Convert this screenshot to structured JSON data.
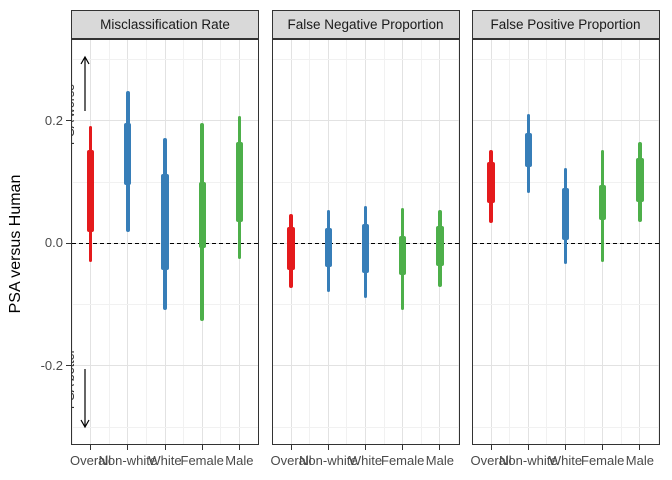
{
  "chart_data": {
    "type": "interval",
    "title": "",
    "ylabel": "PSA versus Human",
    "xlabel": "",
    "categories": [
      "Overall",
      "Non-white",
      "White",
      "Female",
      "Male"
    ],
    "group_colors": {
      "Overall": "#E41A1C",
      "Non-white": "#377EB8",
      "White": "#377EB8",
      "Female": "#4DAF4A",
      "Male": "#4DAF4A"
    },
    "y_axis": {
      "ticks": [
        {
          "label": "0.2",
          "value": 0.2
        },
        {
          "label": "0.0",
          "value": 0.0
        },
        {
          "label": "-0.2",
          "value": -0.2
        }
      ],
      "range": [
        -0.33,
        0.33
      ],
      "zero_line": "dashed",
      "minor_gridlines": [
        -0.3,
        -0.1,
        0.1,
        0.3
      ],
      "major_gridlines": [
        -0.2,
        0.0,
        0.2
      ]
    },
    "annotations": [
      {
        "text": "PSA worse",
        "arrow": "up",
        "position": "top-left of first panel"
      },
      {
        "text": "PSA better",
        "arrow": "down",
        "position": "bottom-left of first panel"
      }
    ],
    "facets": [
      {
        "title": "Misclassification Rate",
        "bars": [
          {
            "category": "Overall",
            "outer": [
              -0.03,
              0.191
            ],
            "inner": [
              0.019,
              0.152
            ]
          },
          {
            "category": "Non-white",
            "outer": [
              0.019,
              0.248
            ],
            "inner": [
              0.095,
              0.196
            ]
          },
          {
            "category": "White",
            "outer": [
              -0.109,
              0.171
            ],
            "inner": [
              -0.044,
              0.113
            ]
          },
          {
            "category": "Female",
            "outer": [
              -0.126,
              0.197
            ],
            "inner": [
              -0.008,
              0.1
            ]
          },
          {
            "category": "Male",
            "outer": [
              -0.026,
              0.208
            ],
            "inner": [
              0.034,
              0.166
            ]
          }
        ]
      },
      {
        "title": "False Negative Proportion",
        "bars": [
          {
            "category": "Overall",
            "outer": [
              -0.073,
              0.048
            ],
            "inner": [
              -0.044,
              0.027
            ]
          },
          {
            "category": "Non-white",
            "outer": [
              -0.079,
              0.054
            ],
            "inner": [
              -0.038,
              0.025
            ]
          },
          {
            "category": "White",
            "outer": [
              -0.09,
              0.061
            ],
            "inner": [
              -0.049,
              0.031
            ]
          },
          {
            "category": "Female",
            "outer": [
              -0.109,
              0.058
            ],
            "inner": [
              -0.052,
              0.012
            ]
          },
          {
            "category": "Male",
            "outer": [
              -0.071,
              0.054
            ],
            "inner": [
              -0.037,
              0.028
            ]
          }
        ]
      },
      {
        "title": "False Positive Proportion",
        "bars": [
          {
            "category": "Overall",
            "outer": [
              0.033,
              0.153
            ],
            "inner": [
              0.065,
              0.133
            ]
          },
          {
            "category": "Non-white",
            "outer": [
              0.082,
              0.211
            ],
            "inner": [
              0.125,
              0.18
            ]
          },
          {
            "category": "White",
            "outer": [
              -0.033,
              0.123
            ],
            "inner": [
              0.005,
              0.091
            ]
          },
          {
            "category": "Female",
            "outer": [
              -0.03,
              0.153
            ],
            "inner": [
              0.038,
              0.095
            ]
          },
          {
            "category": "Male",
            "outer": [
              0.035,
              0.166
            ],
            "inner": [
              0.068,
              0.139
            ]
          }
        ]
      }
    ],
    "style": {
      "grid_major": "#e2e2e2",
      "grid_minor": "#f1f1f1",
      "panel_border": "#333333",
      "strip_bg": "#d9d9d9",
      "axis_text": "#4a4a4a",
      "zero_line_color": "#000000"
    }
  }
}
